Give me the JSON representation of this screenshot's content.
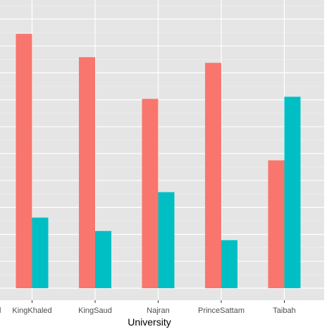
{
  "chart_data": {
    "type": "bar",
    "title": "",
    "xlabel": "University",
    "ylabel": "",
    "categories": [
      "KingKhaled",
      "KingSaud",
      "Najran",
      "PrinceSattam",
      "Taibah"
    ],
    "partial_left_tick": "l",
    "series": [
      {
        "values": [
          36.0,
          32.7,
          26.8,
          31.9,
          18.1
        ]
      },
      {
        "values": [
          10.0,
          8.1,
          13.6,
          6.8,
          27.1
        ]
      }
    ],
    "ylim": [
      0,
      40
    ],
    "grid": true,
    "legend": "none"
  },
  "colors": {
    "panel_background": "#e5e5e5",
    "grid_major": "#ffffff",
    "grid_minor": "#f0f0f0",
    "series": [
      "#f8766d",
      "#00bfc4"
    ]
  }
}
